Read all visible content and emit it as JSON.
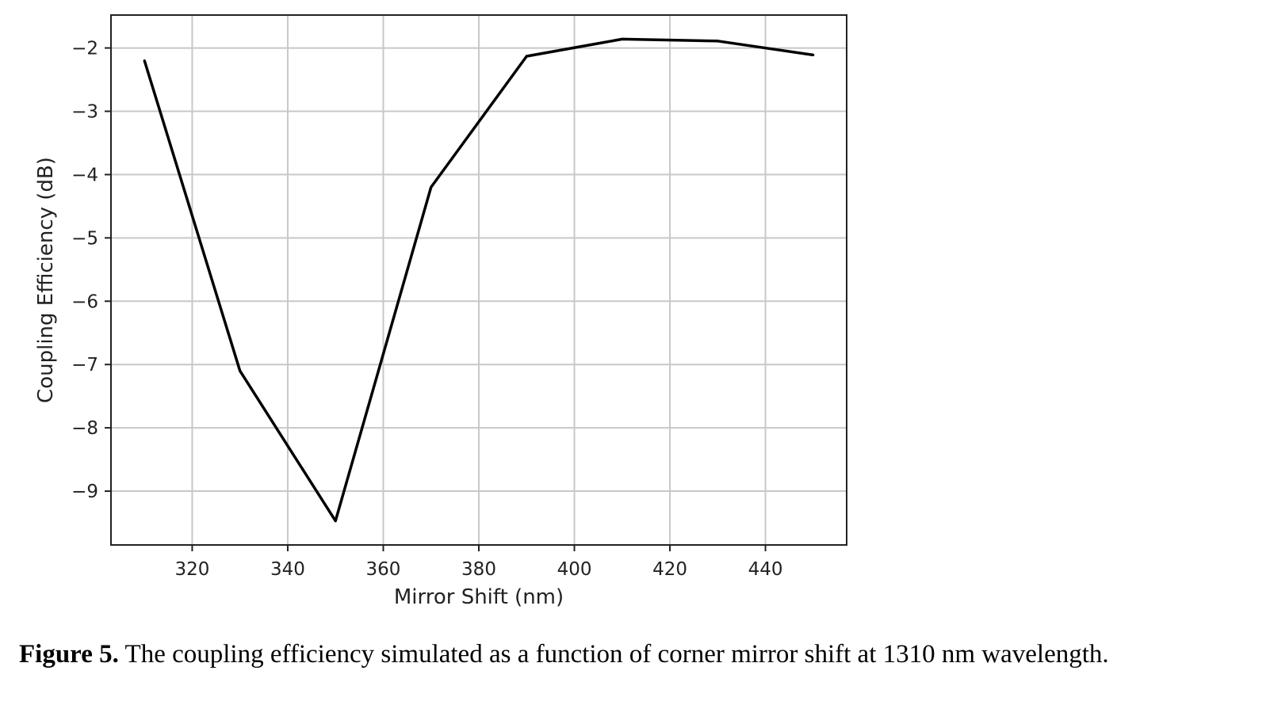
{
  "chart_data": {
    "type": "line",
    "title": "",
    "xlabel": "Mirror Shift (nm)",
    "ylabel": "Coupling Efficiency (dB)",
    "xlim": [
      303,
      457
    ],
    "ylim": [
      -9.85,
      -1.48
    ],
    "xticks": [
      320,
      340,
      360,
      380,
      400,
      420,
      440
    ],
    "yticks": [
      -2,
      -3,
      -4,
      -5,
      -6,
      -7,
      -8,
      -9
    ],
    "grid": true,
    "legend": "none",
    "line_color": "#000000",
    "series": [
      {
        "x": [
          310,
          330,
          350,
          370,
          390,
          410,
          430,
          450
        ],
        "values": [
          -2.2,
          -7.1,
          -9.47,
          -4.2,
          -2.13,
          -1.86,
          -1.89,
          -2.11
        ]
      }
    ]
  },
  "caption": {
    "label": "Figure 5.",
    "text": "The coupling efficiency simulated as a function of corner mirror shift at 1310 nm wavelength."
  }
}
